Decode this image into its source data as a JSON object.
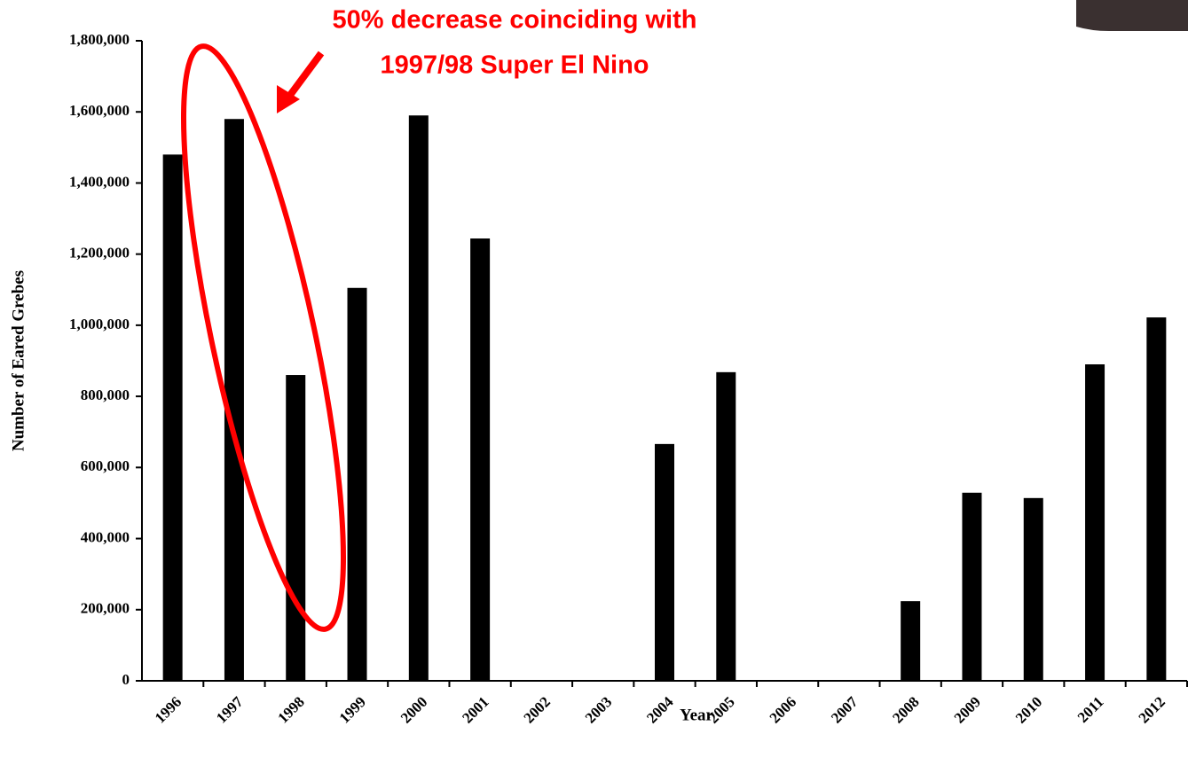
{
  "chart_data": {
    "type": "bar",
    "annotation": [
      "50% decrease coinciding with",
      "1997/98 Super El Nino"
    ],
    "x_label": "Year",
    "y_label": "Number of Eared Grebes",
    "categories": [
      "1996",
      "1997",
      "1998",
      "1999",
      "2000",
      "2001",
      "2002",
      "2003",
      "2004",
      "2005",
      "2006",
      "2007",
      "2008",
      "2009",
      "2010",
      "2011",
      "2012"
    ],
    "values": [
      1480000,
      1580000,
      860000,
      1105000,
      1590000,
      1244000,
      null,
      null,
      666000,
      868000,
      null,
      null,
      224000,
      529000,
      514000,
      890000,
      1022000
    ],
    "color": "#000000",
    "ylim": [
      0,
      1800000
    ],
    "yticks": [
      0,
      {
        "value": 200000,
        "label": "200,000"
      },
      {
        "value": 400000,
        "label": "400,000"
      },
      {
        "value": 600000,
        "label": "600,000"
      },
      {
        "value": 800000,
        "label": "800,000"
      },
      {
        "value": 1000000,
        "label": "1,000,000"
      },
      {
        "value": 1200000,
        "label": "1,200,000"
      },
      {
        "value": 1400000,
        "label": "1,400,000"
      },
      {
        "value": 1600000,
        "label": "1,600,000"
      },
      {
        "value": 1800000,
        "label": "1,800,000"
      }
    ],
    "grid": false
  }
}
